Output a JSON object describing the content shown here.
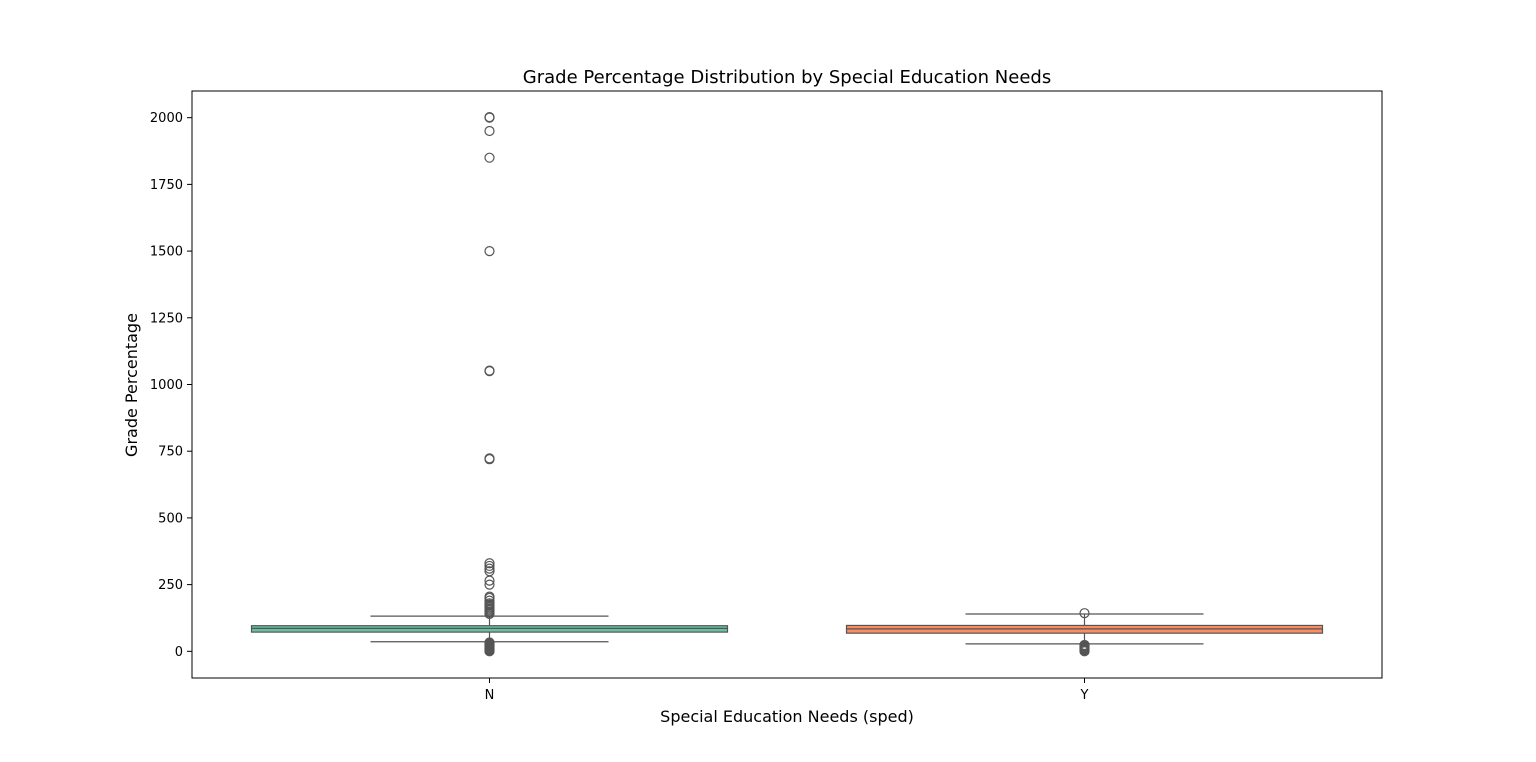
{
  "chart_data": {
    "type": "box",
    "title": "Grade Percentage Distribution by Special Education Needs",
    "xlabel": "Special Education Needs (sped)",
    "ylabel": "Grade Percentage",
    "ylim": [
      -100,
      2100
    ],
    "yticks": [
      0,
      250,
      500,
      750,
      1000,
      1250,
      1500,
      1750,
      2000
    ],
    "categories": [
      "N",
      "Y"
    ],
    "legend": "none",
    "grid": false,
    "series": [
      {
        "category": "N",
        "color": "#66c2a5",
        "whisker_low": 36,
        "q1": 72,
        "median": 86,
        "q3": 96,
        "whisker_high": 132,
        "outliers_high": [
          140,
          145,
          150,
          155,
          160,
          165,
          170,
          175,
          180,
          190,
          200,
          205,
          250,
          265,
          300,
          310,
          320,
          330,
          720,
          723,
          1050,
          1052,
          1500,
          1850,
          1950,
          2000,
          2002
        ],
        "outliers_low": [
          0,
          3,
          6,
          9,
          12,
          15,
          18,
          21,
          24,
          27,
          30,
          33
        ]
      },
      {
        "category": "Y",
        "color": "#fc8d62",
        "whisker_low": 28,
        "q1": 68,
        "median": 84,
        "q3": 97,
        "whisker_high": 140,
        "outliers_high": [
          143
        ],
        "outliers_low": [
          0,
          3,
          6,
          9,
          12,
          15,
          18,
          21,
          24
        ]
      }
    ]
  }
}
